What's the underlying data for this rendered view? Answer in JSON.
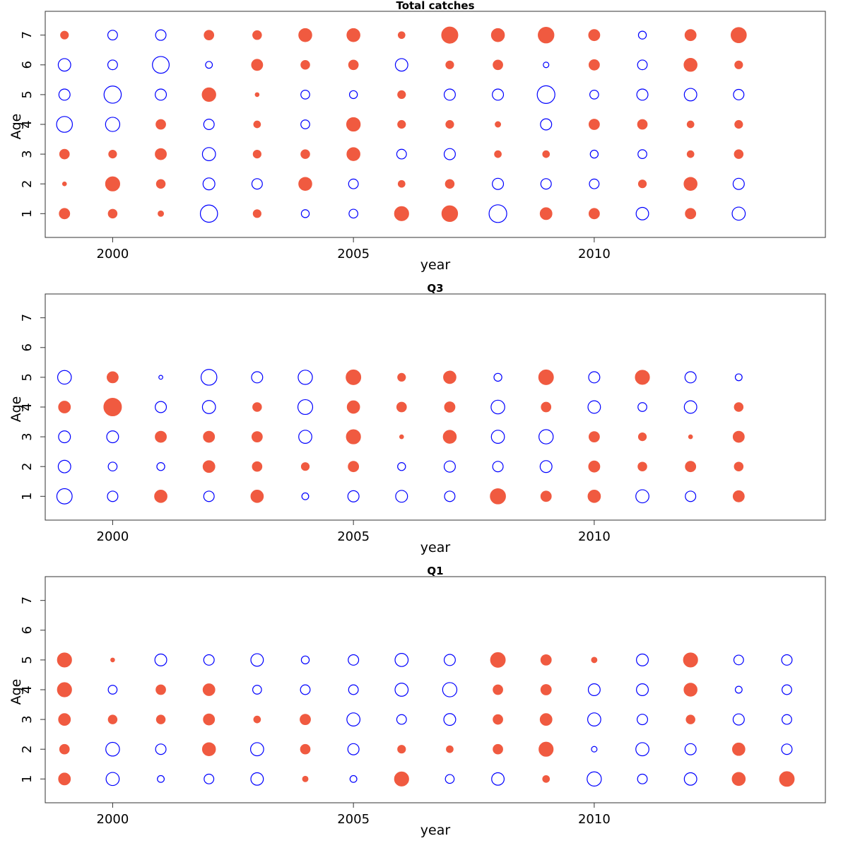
{
  "colors": {
    "positive": "#f05a40",
    "negative": "#0000ff"
  },
  "chart_data": [
    {
      "type": "scatter",
      "title": "Total catches",
      "xlabel": "year",
      "ylabel": "Age",
      "xlim": [
        1998.6,
        2014.8
      ],
      "ylim": [
        0.2,
        7.8
      ],
      "xticks": [
        2000,
        2005,
        2010
      ],
      "yticks": [
        1,
        2,
        3,
        4,
        5,
        6,
        7
      ],
      "years": [
        1999,
        2000,
        2001,
        2002,
        2003,
        2004,
        2005,
        2006,
        2007,
        2008,
        2009,
        2010,
        2011,
        2012,
        2013
      ],
      "ages": [
        1,
        2,
        3,
        4,
        5,
        6,
        7
      ],
      "residuals": [
        [
          0.7,
          0.1,
          0.6,
          -1.6,
          -0.8,
          -1.0,
          0.4
        ],
        [
          0.5,
          1.3,
          0.4,
          -1.3,
          -1.9,
          -0.6,
          -0.6
        ],
        [
          0.2,
          0.5,
          0.8,
          0.6,
          -0.8,
          -1.8,
          -0.7
        ],
        [
          -1.9,
          -0.9,
          -1.1,
          -0.7,
          1.2,
          -0.3,
          0.6
        ],
        [
          0.4,
          -0.7,
          0.4,
          0.3,
          0.1,
          0.8,
          0.5
        ],
        [
          -0.4,
          1.1,
          0.5,
          -0.5,
          -0.5,
          0.5,
          1.1
        ],
        [
          -0.5,
          -0.6,
          1.1,
          1.2,
          -0.4,
          0.6,
          1.1
        ],
        [
          1.3,
          0.3,
          -0.6,
          0.4,
          0.4,
          -1.0,
          0.3
        ],
        [
          1.6,
          0.5,
          -0.8,
          0.4,
          -0.8,
          0.4,
          1.7
        ],
        [
          -2.0,
          -0.8,
          0.3,
          0.2,
          -0.8,
          0.6,
          1.1
        ],
        [
          0.9,
          -0.7,
          0.3,
          -0.8,
          -2.0,
          -0.2,
          1.6
        ],
        [
          0.7,
          -0.6,
          -0.4,
          0.7,
          -0.5,
          0.7,
          0.8
        ],
        [
          -1.0,
          0.4,
          -0.5,
          0.6,
          -0.8,
          -0.6,
          -0.4
        ],
        [
          0.7,
          1.1,
          0.3,
          0.3,
          -1.0,
          1.1,
          0.8
        ],
        [
          -1.1,
          -0.8,
          0.5,
          0.4,
          -0.7,
          0.4,
          1.5
        ]
      ]
    },
    {
      "type": "scatter",
      "title": "Q3",
      "xlabel": "year",
      "ylabel": "Age",
      "xlim": [
        1998.6,
        2014.8
      ],
      "ylim": [
        0.2,
        7.8
      ],
      "xticks": [
        2000,
        2005,
        2010
      ],
      "yticks": [
        1,
        2,
        3,
        4,
        5,
        6,
        7
      ],
      "years": [
        1999,
        2000,
        2001,
        2002,
        2003,
        2004,
        2005,
        2006,
        2007,
        2008,
        2009,
        2010,
        2011,
        2012,
        2013
      ],
      "ages": [
        1,
        2,
        3,
        4,
        5
      ],
      "residuals": [
        [
          -1.5,
          -1.0,
          -0.9,
          0.9,
          -1.2
        ],
        [
          -0.7,
          -0.5,
          -0.9,
          2.0,
          0.8
        ],
        [
          1.0,
          -0.4,
          0.8,
          -0.8,
          -0.1
        ],
        [
          -0.7,
          0.9,
          0.8,
          -1.1,
          -1.6
        ],
        [
          1.0,
          0.6,
          0.7,
          0.5,
          -0.8
        ],
        [
          -0.3,
          0.4,
          -1.1,
          -1.4,
          -1.3
        ],
        [
          -0.8,
          0.7,
          1.3,
          1.0,
          1.4
        ],
        [
          -0.9,
          -0.4,
          0.1,
          0.6,
          0.4
        ],
        [
          -0.7,
          -0.8,
          1.1,
          0.7,
          1.0
        ],
        [
          1.5,
          -0.7,
          -1.1,
          -1.2,
          -0.4
        ],
        [
          0.7,
          -0.9,
          -1.3,
          0.6,
          1.4
        ],
        [
          1.0,
          0.8,
          0.7,
          -1.0,
          -0.8
        ],
        [
          -1.1,
          0.5,
          0.4,
          -0.5,
          1.3
        ],
        [
          -0.7,
          0.7,
          0.1,
          -1.0,
          -0.8
        ],
        [
          0.8,
          0.5,
          0.8,
          0.5,
          -0.3
        ]
      ]
    },
    {
      "type": "scatter",
      "title": "Q1",
      "xlabel": "year",
      "ylabel": "Age",
      "xlim": [
        1998.6,
        2014.8
      ],
      "ylim": [
        0.2,
        7.8
      ],
      "xticks": [
        2000,
        2005,
        2010
      ],
      "yticks": [
        1,
        2,
        3,
        4,
        5,
        6,
        7
      ],
      "years": [
        1999,
        2000,
        2001,
        2002,
        2003,
        2004,
        2005,
        2006,
        2007,
        2008,
        2009,
        2010,
        2011,
        2012,
        2013,
        2014
      ],
      "ages": [
        1,
        2,
        3,
        4,
        5
      ],
      "residuals": [
        [
          0.9,
          0.6,
          0.9,
          1.3,
          1.3
        ],
        [
          -1.1,
          -1.2,
          0.5,
          -0.5,
          0.1
        ],
        [
          -0.3,
          -0.7,
          0.5,
          0.6,
          -0.9
        ],
        [
          -0.6,
          1.1,
          0.8,
          0.9,
          -0.7
        ],
        [
          -1.0,
          -1.1,
          0.3,
          -0.5,
          -1.0
        ],
        [
          0.2,
          0.6,
          0.7,
          -0.6,
          -0.4
        ],
        [
          -0.3,
          -0.8,
          -1.1,
          -0.6,
          -0.7
        ],
        [
          1.3,
          0.4,
          -0.6,
          -1.1,
          -1.1
        ],
        [
          -0.5,
          0.3,
          -0.9,
          -1.3,
          -0.8
        ],
        [
          -1.0,
          0.6,
          0.6,
          0.6,
          1.4
        ],
        [
          0.3,
          1.3,
          0.9,
          0.7,
          0.7
        ],
        [
          -1.3,
          -0.2,
          -1.1,
          -0.9,
          0.2
        ],
        [
          -0.6,
          -1.1,
          -0.7,
          -0.9,
          -0.9
        ],
        [
          -1.0,
          -0.8,
          0.5,
          1.1,
          1.3
        ],
        [
          1.1,
          1.0,
          -0.8,
          -0.3,
          -0.6
        ],
        [
          1.4,
          -0.7,
          -0.6,
          -0.6,
          -0.7
        ]
      ]
    }
  ]
}
